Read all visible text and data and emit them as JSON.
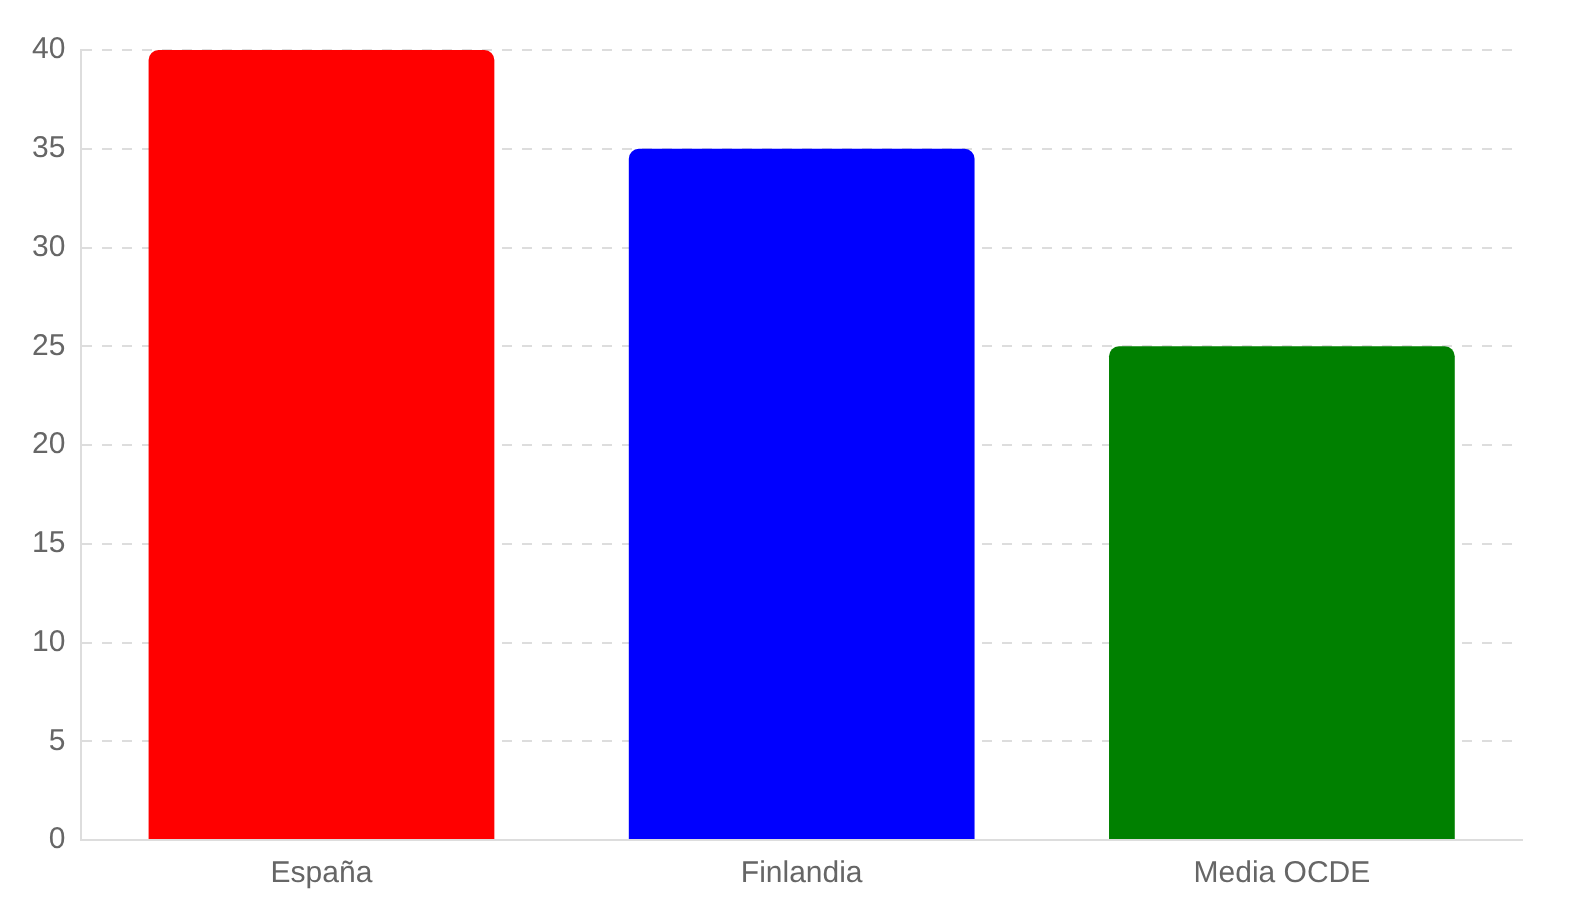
{
  "chart_data": {
    "type": "bar",
    "categories": [
      "España",
      "Finlandia",
      "Media OCDE"
    ],
    "values": [
      40,
      35,
      25
    ],
    "colors": [
      "#ff0000",
      "#0000ff",
      "#008000"
    ],
    "ylim": [
      0,
      40
    ],
    "yticks": [
      0,
      5,
      10,
      15,
      20,
      25,
      30,
      35,
      40
    ],
    "grid": "y",
    "legend": false
  }
}
